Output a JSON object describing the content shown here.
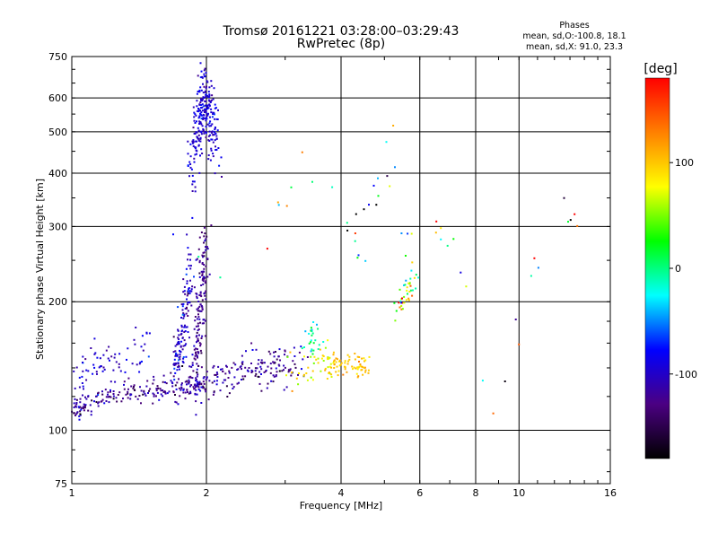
{
  "chart_data": {
    "type": "scatter",
    "title": "Tromsø 20161221 03:28:00–03:29:43",
    "subtitle": "RwPretec (8p)",
    "xlabel": "Frequency [MHz]",
    "ylabel": "Stationary phase Virtual Height [km]",
    "x_scale": "log",
    "y_scale": "log",
    "xlim": [
      1,
      16
    ],
    "ylim": [
      75,
      750
    ],
    "x_ticks": [
      1,
      2,
      4,
      6,
      8,
      10,
      16
    ],
    "x_tick_labels": [
      "1",
      "2",
      "4",
      "6",
      "8",
      "10",
      "16"
    ],
    "y_ticks": [
      75,
      100,
      200,
      300,
      400,
      500,
      600,
      750
    ],
    "y_tick_labels": [
      "75",
      "100",
      "200",
      "300",
      "400",
      "500",
      "600",
      "750"
    ],
    "grid": true,
    "colorbar": {
      "unit": "[deg]",
      "range": [
        -180,
        180
      ],
      "ticks": [
        100,
        0,
        -100
      ],
      "tick_labels": [
        "100",
        "0",
        "-100"
      ],
      "colors": [
        "#000000",
        "#4b0082",
        "#0000ff",
        "#00ffff",
        "#00ff00",
        "#ffff00",
        "#ff8000",
        "#ff0000"
      ]
    },
    "legend": {
      "title": "Phases",
      "lines": [
        "mean, sd,O:-100.8, 18.1",
        "mean, sd,X:  91.0, 23.3"
      ],
      "placement": "top-right"
    },
    "clusters": [
      {
        "xs": [
          1.0,
          1.05,
          1.1,
          1.2,
          1.3,
          1.4,
          1.5,
          1.6,
          1.7,
          1.8,
          1.9,
          2.0
        ],
        "ys": [
          110,
          113,
          116,
          119,
          121,
          122,
          123,
          124,
          125,
          126,
          127,
          128
        ],
        "spread_x": 0.015,
        "spread_y": 0.03,
        "phase": -120,
        "phase_sd": 18,
        "count": 220
      },
      {
        "xs": [
          1.02,
          1.1,
          1.2,
          1.35,
          1.5
        ],
        "ys": [
          130,
          138,
          145,
          150,
          155
        ],
        "spread_x": 0.02,
        "spread_y": 0.06,
        "phase": -100,
        "phase_sd": 15,
        "count": 70
      },
      {
        "xs": [
          1.7,
          1.75,
          1.8,
          1.85
        ],
        "ys": [
          135,
          160,
          200,
          240
        ],
        "spread_x": 0.015,
        "spread_y": 0.08,
        "phase": -100,
        "phase_sd": 18,
        "count": 140
      },
      {
        "xs": [
          1.88,
          1.92,
          1.96,
          2.0
        ],
        "ys": [
          130,
          170,
          220,
          260
        ],
        "spread_x": 0.012,
        "spread_y": 0.1,
        "phase": -120,
        "phase_sd": 15,
        "count": 160
      },
      {
        "xs": [
          1.85,
          1.9,
          1.95,
          2.0,
          2.05,
          2.1
        ],
        "ys": [
          400,
          480,
          560,
          620,
          520,
          450
        ],
        "spread_x": 0.015,
        "spread_y": 0.1,
        "phase": -95,
        "phase_sd": 12,
        "count": 260
      },
      {
        "xs": [
          2.0,
          2.2,
          2.4,
          2.6,
          2.8,
          3.0,
          3.3
        ],
        "ys": [
          128,
          132,
          138,
          140,
          142,
          140,
          138
        ],
        "spread_x": 0.02,
        "spread_y": 0.05,
        "phase": -120,
        "phase_sd": 20,
        "count": 160
      },
      {
        "xs": [
          3.0,
          3.5,
          3.8
        ],
        "ys": [
          135,
          140,
          145
        ],
        "spread_x": 0.02,
        "spread_y": 0.05,
        "phase": 80,
        "phase_sd": 20,
        "count": 45
      },
      {
        "xs": [
          3.7,
          4.0,
          4.3,
          4.6
        ],
        "ys": [
          140,
          145,
          143,
          142
        ],
        "spread_x": 0.02,
        "spread_y": 0.03,
        "phase": 100,
        "phase_sd": 12,
        "count": 70
      },
      {
        "xs": [
          3.4,
          3.5
        ],
        "ys": [
          160,
          170
        ],
        "spread_x": 0.02,
        "spread_y": 0.05,
        "phase": -10,
        "phase_sd": 20,
        "count": 25
      },
      {
        "xs": [
          5.4,
          5.6,
          5.8
        ],
        "ys": [
          190,
          215,
          225
        ],
        "spread_x": 0.015,
        "spread_y": 0.05,
        "phase": 60,
        "phase_sd": 70,
        "count": 40
      },
      {
        "xs": [
          1.5,
          2.5,
          3.2,
          4.0,
          4.4,
          5.0,
          5.5,
          6.0,
          7.2,
          8.7,
          12.0,
          15.5
        ],
        "ys": [
          300,
          200,
          450,
          340,
          250,
          560,
          260,
          320,
          270,
          100,
          360,
          240
        ],
        "spread_x": 0.02,
        "spread_y": 0.03,
        "phase": 0,
        "phase_sd": 110,
        "count": 55
      }
    ]
  }
}
